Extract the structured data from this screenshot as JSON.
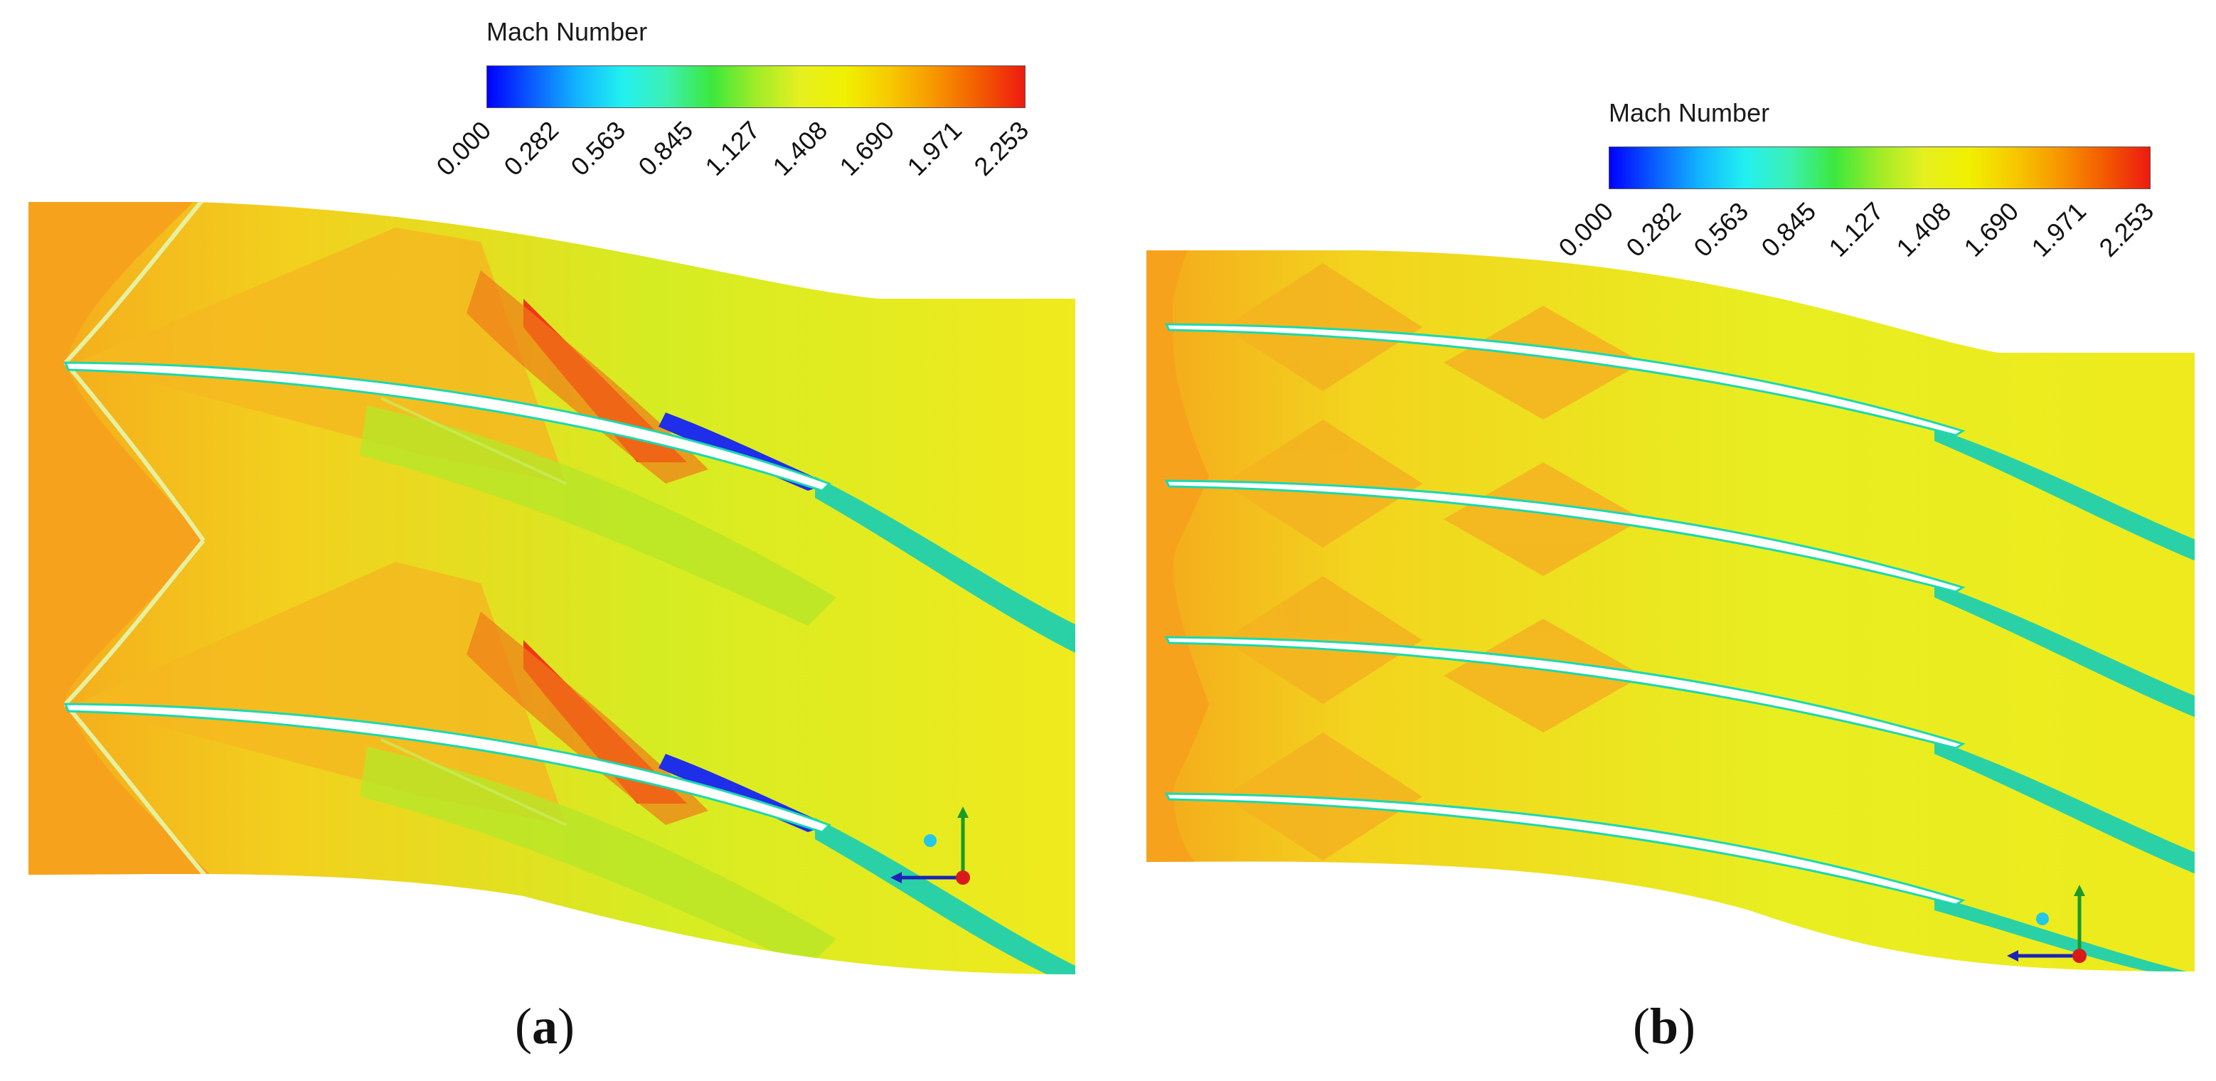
{
  "panels": [
    {
      "id": "a",
      "colorbar": {
        "title": "Mach Number",
        "ticks": [
          "0.000",
          "0.282",
          "0.563",
          "0.845",
          "1.127",
          "1.408",
          "1.690",
          "1.971",
          "2.253"
        ]
      },
      "caption_letter": "a",
      "blade_count": 2
    },
    {
      "id": "b",
      "colorbar": {
        "title": "Mach Number",
        "ticks": [
          "0.000",
          "0.282",
          "0.563",
          "0.845",
          "1.127",
          "1.408",
          "1.690",
          "1.971",
          "2.253"
        ]
      },
      "caption_letter": "b",
      "blade_count": 4
    }
  ],
  "colors": {
    "freestream": "#f7a21c",
    "field": "#f1ef1c",
    "high": "#f13a12",
    "low": "#1f2ee8",
    "wake": "#2bd1a6",
    "axis_green": "#1a9a2a",
    "axis_blue": "#1c23b8",
    "axis_red": "#d91a1a",
    "axis_cyan": "#22c8e6"
  },
  "colorbar_gradient": [
    "#0000ff",
    "#0a5cff",
    "#12b4ff",
    "#22f0f0",
    "#3cf0b4",
    "#3ce83c",
    "#a0ec28",
    "#e6f020",
    "#f0f000",
    "#f7c800",
    "#f79600",
    "#f25a00",
    "#ee1a10"
  ]
}
